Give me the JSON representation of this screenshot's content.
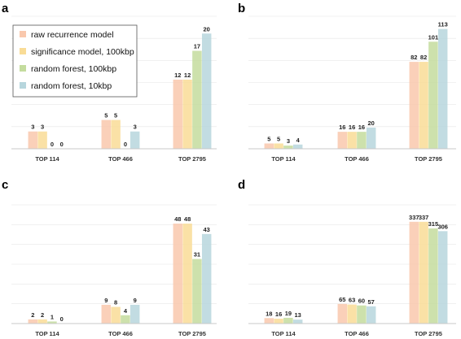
{
  "legend": {
    "entries": [
      "raw recurrence model",
      "significance model, 100kbp",
      "random forest, 100kbp",
      "random forest, 10kbp"
    ]
  },
  "colors": {
    "series": [
      "#f9c8ad",
      "#f9dc96",
      "#c4dc9e",
      "#b7d6dd"
    ],
    "axis": "#c8c8c8",
    "grid": "#e6e6e6"
  },
  "chart_data": [
    {
      "panel": "a",
      "type": "bar",
      "categories": [
        "TOP 114",
        "TOP 466",
        "TOP 2795"
      ],
      "series": [
        {
          "name": "raw recurrence model",
          "values": [
            3,
            5,
            12
          ]
        },
        {
          "name": "significance model, 100kbp",
          "values": [
            3,
            5,
            12
          ]
        },
        {
          "name": "random forest, 100kbp",
          "values": [
            0,
            0,
            17
          ]
        },
        {
          "name": "random forest, 10kbp",
          "values": [
            0,
            3,
            20
          ]
        }
      ],
      "ylim": [
        0,
        23
      ],
      "grid": true,
      "legend_position": "top-left"
    },
    {
      "panel": "b",
      "type": "bar",
      "categories": [
        "TOP 114",
        "TOP 466",
        "TOP 2795"
      ],
      "series": [
        {
          "name": "raw recurrence model",
          "values": [
            5,
            16,
            82
          ]
        },
        {
          "name": "significance model, 100kbp",
          "values": [
            5,
            16,
            82
          ]
        },
        {
          "name": "random forest, 100kbp",
          "values": [
            3,
            16,
            101
          ]
        },
        {
          "name": "random forest, 10kbp",
          "values": [
            4,
            20,
            113
          ]
        }
      ],
      "ylim": [
        0,
        125
      ],
      "grid": true
    },
    {
      "panel": "c",
      "type": "bar",
      "categories": [
        "TOP 114",
        "TOP 466",
        "TOP 2795"
      ],
      "series": [
        {
          "name": "raw recurrence model",
          "values": [
            2,
            9,
            48
          ]
        },
        {
          "name": "significance model, 100kbp",
          "values": [
            2,
            8,
            48
          ]
        },
        {
          "name": "random forest, 100kbp",
          "values": [
            1,
            4,
            31
          ]
        },
        {
          "name": "random forest, 10kbp",
          "values": [
            0,
            9,
            43
          ]
        }
      ],
      "ylim": [
        0,
        57
      ],
      "grid": true
    },
    {
      "panel": "d",
      "type": "bar",
      "categories": [
        "TOP 114",
        "TOP 466",
        "TOP 2795"
      ],
      "series": [
        {
          "name": "raw recurrence model",
          "values": [
            18,
            65,
            337
          ]
        },
        {
          "name": "significance model, 100kbp",
          "values": [
            16,
            63,
            337
          ]
        },
        {
          "name": "random forest, 100kbp",
          "values": [
            19,
            60,
            315
          ]
        },
        {
          "name": "random forest, 10kbp",
          "values": [
            13,
            57,
            306
          ]
        }
      ],
      "ylim": [
        0,
        393
      ],
      "grid": true
    }
  ]
}
